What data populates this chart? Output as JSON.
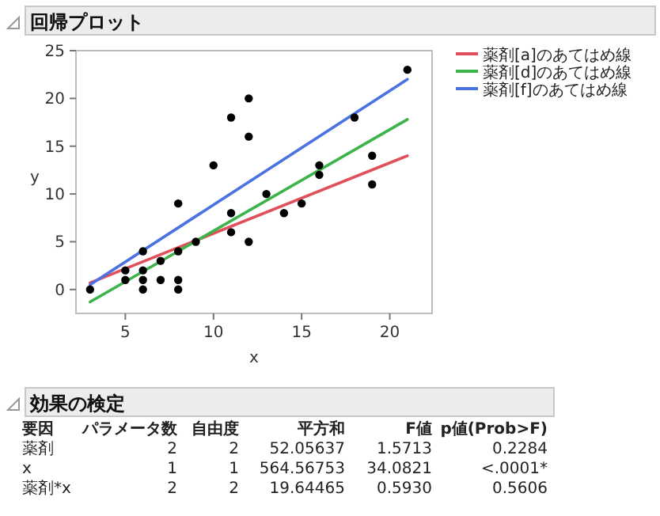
{
  "chart_data": [
    {
      "type": "scatter",
      "title": "回帰プロット",
      "xlabel": "x",
      "ylabel": "y",
      "xlim": [
        2.2,
        22.4
      ],
      "ylim": [
        -2.5,
        25
      ],
      "xticks": [
        5,
        10,
        15,
        20
      ],
      "yticks": [
        0,
        5,
        10,
        15,
        20,
        25
      ],
      "grid": false,
      "legend": "right",
      "series": [
        {
          "color": "#000000",
          "marker": "circle",
          "x": [
            3,
            5,
            5,
            6,
            6,
            6,
            6,
            7,
            7,
            8,
            8,
            8,
            8,
            9,
            10,
            11,
            11,
            11,
            12,
            12,
            12,
            13,
            14,
            15,
            16,
            16,
            18,
            19,
            19,
            21
          ],
          "values": [
            0,
            2,
            1,
            4,
            2,
            1,
            0,
            3,
            1,
            9,
            4,
            1,
            0,
            5,
            13,
            18,
            8,
            6,
            20,
            16,
            5,
            10,
            8,
            9,
            13,
            12,
            18,
            14,
            11,
            23
          ]
        },
        {
          "type": "line",
          "name": "薬剤[a]のあてはめ線",
          "color": "#e0505a",
          "x": [
            3,
            21
          ],
          "values": [
            0.7,
            14
          ]
        },
        {
          "type": "line",
          "name": "薬剤[d]のあてはめ線",
          "color": "#3cb44b",
          "x": [
            3,
            21
          ],
          "values": [
            -1.3,
            17.8
          ]
        },
        {
          "type": "line",
          "name": "薬剤[f]のあてはめ線",
          "color": "#4a72e0",
          "x": [
            3,
            21
          ],
          "values": [
            0.5,
            22
          ]
        }
      ]
    },
    {
      "type": "other",
      "title": "効果の検定",
      "annotations": [
        "要因",
        "パラメータ数",
        "自由度",
        "平方和",
        "F値",
        "p値(Prob>F)",
        "薬剤",
        "2",
        "2",
        "52.05637",
        "1.5713",
        "0.2284",
        "x",
        "1",
        "1",
        "564.56753",
        "34.0821",
        "<.0001*",
        "薬剤*x",
        "2",
        "2",
        "19.64465",
        "0.5930",
        "0.5606"
      ]
    }
  ]
}
